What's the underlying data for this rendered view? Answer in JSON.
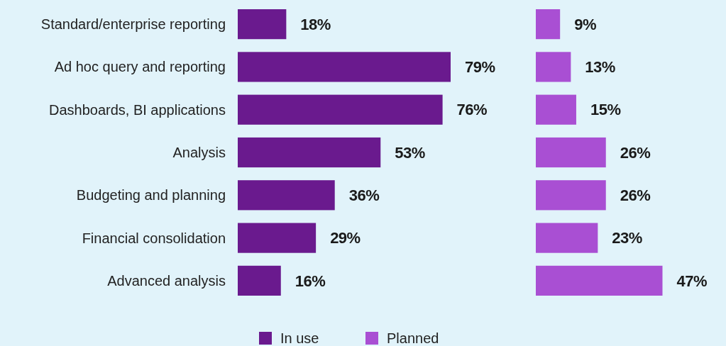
{
  "chart_data": [
    {
      "type": "bar",
      "orientation": "horizontal",
      "categories": [
        "Standard/enterprise reporting",
        "Ad hoc query and reporting",
        "Dashboards, BI  applications",
        "Analysis",
        "Budgeting and planning",
        "Financial consolidation",
        "Advanced analysis"
      ],
      "series": [
        {
          "name": "In use",
          "color": "#6a1a8e",
          "values": [
            18,
            79,
            76,
            53,
            36,
            29,
            16
          ],
          "value_labels": [
            "18%",
            "79%",
            "76%",
            "53%",
            "36%",
            "29%",
            "16%"
          ]
        }
      ],
      "legend": "bottom"
    },
    {
      "type": "bar",
      "orientation": "horizontal",
      "categories": [
        null,
        null,
        null,
        null,
        null,
        null,
        null
      ],
      "series": [
        {
          "name": "Planned",
          "color": "#a94fd3",
          "values": [
            9,
            13,
            15,
            26,
            26,
            23,
            47
          ],
          "value_labels": [
            "9%",
            "13%",
            "15%",
            "26%",
            "26%",
            "23%",
            "47%"
          ]
        }
      ],
      "legend": "bottom"
    }
  ]
}
